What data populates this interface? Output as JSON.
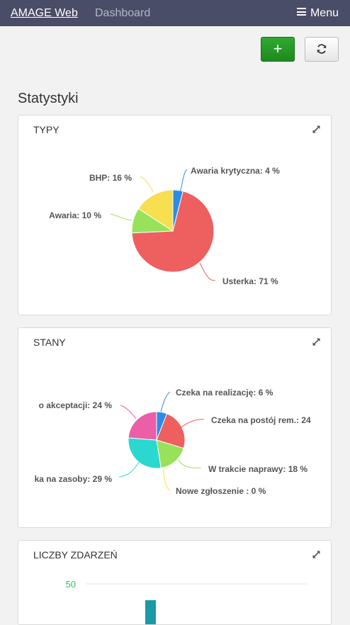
{
  "nav": {
    "brand": "AMAGE Web",
    "link": "Dashboard",
    "menu": "Menu"
  },
  "toolbar": {
    "add_label": "+"
  },
  "page": {
    "title": "Statystyki"
  },
  "panels": [
    {
      "title": "TYPY"
    },
    {
      "title": "STANY"
    },
    {
      "title": "LICZBY ZDARZEŃ"
    }
  ],
  "chart_data": [
    {
      "type": "pie",
      "title": "TYPY",
      "slices": [
        {
          "label": "Awaria krytyczna: 4 %",
          "value": 4,
          "color": "#2b8ce6"
        },
        {
          "label": "Usterka: 71 %",
          "value": 71,
          "color": "#ee5f5f"
        },
        {
          "label": "Awaria: 10 %",
          "value": 10,
          "color": "#97e25a"
        },
        {
          "label": "BHP: 16 %",
          "value": 16,
          "color": "#f7df4f"
        }
      ]
    },
    {
      "type": "pie",
      "title": "STANY",
      "slices": [
        {
          "label": "Czeka na realizację: 6 %",
          "value": 6,
          "color": "#2b8ce6"
        },
        {
          "label": "Czeka na postój rem.: 24",
          "value": 24,
          "color": "#ee5f5f"
        },
        {
          "label": "W trakcie naprawy: 18 %",
          "value": 18,
          "color": "#97e25a"
        },
        {
          "label": "Nowe zgłoszenie : 0 %",
          "value": 0,
          "color": "#f7df4f"
        },
        {
          "label": "ka na zasoby: 29 %",
          "value": 29,
          "color": "#2ad8cf"
        },
        {
          "label": "o akceptacji: 24 %",
          "value": 24,
          "color": "#ec5fa8"
        }
      ]
    },
    {
      "type": "bar",
      "title": "LICZBY ZDARZEŃ",
      "ytick": "50",
      "color": "#1a9aa7",
      "tick_color": "#2fc25a"
    }
  ]
}
